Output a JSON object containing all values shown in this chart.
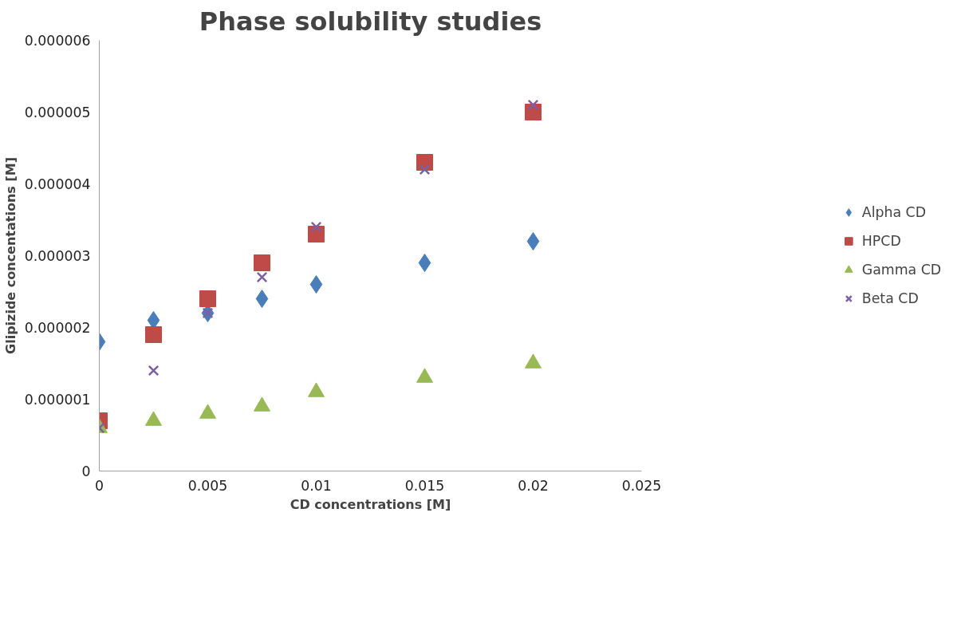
{
  "chart_data": {
    "type": "scatter",
    "title": "Phase solubility studies",
    "xlabel": "CD concentrations [M]",
    "ylabel": "Glipizide concentations [M]",
    "x": [
      0,
      0.0025,
      0.005,
      0.0075,
      0.01,
      0.015,
      0.02
    ],
    "series": [
      {
        "name": "Alpha CD",
        "color": "#4a7ebb",
        "marker": "diamond",
        "values": [
          1.8e-06,
          2.1e-06,
          2.2e-06,
          2.4e-06,
          2.6e-06,
          2.9e-06,
          3.2e-06
        ]
      },
      {
        "name": "HPCD",
        "color": "#be4b48",
        "marker": "square",
        "values": [
          7e-07,
          1.9e-06,
          2.4e-06,
          2.9e-06,
          3.3e-06,
          4.3e-06,
          5e-06
        ]
      },
      {
        "name": "Gamma CD",
        "color": "#98b954",
        "marker": "triangle",
        "values": [
          6e-07,
          7e-07,
          8e-07,
          9e-07,
          1.1e-06,
          1.3e-06,
          1.5e-06
        ]
      },
      {
        "name": "Beta CD",
        "color": "#7d60a0",
        "marker": "cross",
        "values": [
          6e-07,
          1.4e-06,
          2.2e-06,
          2.7e-06,
          3.4e-06,
          4.2e-06,
          5.1e-06
        ]
      }
    ],
    "xlim": [
      0,
      0.025
    ],
    "xticks": [
      0,
      0.005,
      0.01,
      0.015,
      0.02,
      0.025
    ],
    "ylim": [
      0,
      6e-06
    ],
    "yticks": [
      0,
      {
        "value": 1e-06,
        "label": "0.000001"
      },
      {
        "value": 2e-06,
        "label": "0.000002"
      },
      {
        "value": 3e-06,
        "label": "0.000003"
      },
      {
        "value": 4e-06,
        "label": "0.000004"
      },
      {
        "value": 5e-06,
        "label": "0.000005"
      },
      {
        "value": 6e-06,
        "label": "0.000006"
      }
    ],
    "grid": false,
    "legend": "right"
  }
}
